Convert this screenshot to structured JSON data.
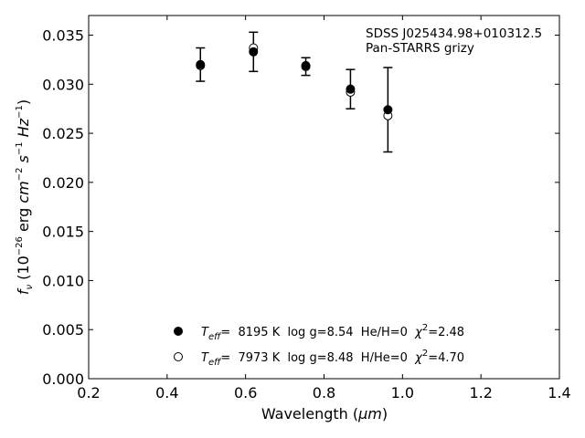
{
  "chart_data": {
    "type": "scatter",
    "title": "",
    "xlabel": {
      "text": "Wavelength (",
      "unit": "μm",
      "close": ")"
    },
    "ylabel": {
      "f": "f",
      "nu": "ν",
      "open": " (10",
      "exp1": "−26",
      "erg": " erg ",
      "cm": "cm",
      "exp2": "−2",
      "s": " s",
      "exp3": "−1",
      "Hz": " Hz",
      "exp4": "−1",
      "close": ")"
    },
    "xlim": [
      0.2,
      1.4
    ],
    "ylim": [
      0.0,
      0.037
    ],
    "x_ticks": [
      "0.2",
      "0.4",
      "0.6",
      "0.8",
      "1.0",
      "1.2",
      "1.4"
    ],
    "y_ticks": [
      "0.000",
      "0.005",
      "0.010",
      "0.015",
      "0.020",
      "0.025",
      "0.030",
      "0.035"
    ],
    "grid": false,
    "annotation": [
      "SDSS J025434.98+010312.5",
      "Pan-STARRS grizy"
    ],
    "observed": {
      "x": [
        0.4849,
        0.6201,
        0.7535,
        0.8674,
        0.9628
      ],
      "y": [
        0.032,
        0.0333,
        0.0318,
        0.0295,
        0.0274
      ],
      "err": [
        0.0017,
        0.002,
        0.0009,
        0.002,
        0.0043
      ],
      "err_top_clipped_at_axis": true
    },
    "series": [
      {
        "name": "Teff= 8195 K log g=8.54 He/H=0 χ2=2.48",
        "marker": "filled-circle",
        "x": [
          0.4849,
          0.6201,
          0.7535,
          0.8674,
          0.9628
        ],
        "y": [
          0.032,
          0.0333,
          0.0319,
          0.0295,
          0.0274
        ]
      },
      {
        "name": "Teff= 7973 K log g=8.48 H/He=0 χ2=4.70",
        "marker": "open-circle",
        "x": [
          0.4849,
          0.6201,
          0.7535,
          0.8674,
          0.9628
        ],
        "y": [
          0.0319,
          0.0337,
          0.0318,
          0.0292,
          0.0268
        ]
      }
    ],
    "legend": {
      "placement": "bottom-center",
      "items": [
        {
          "T": "T",
          "sub": "eff",
          "rest1": "=  8195 K  log g=8.54  He/H=0  ",
          "chi": "χ",
          "sup": "2",
          "rest2": "=2.48"
        },
        {
          "T": "T",
          "sub": "eff",
          "rest1": "=  7973 K  log g=8.48  H/He=0  ",
          "chi": "χ",
          "sup": "2",
          "rest2": "=4.70"
        }
      ]
    }
  }
}
